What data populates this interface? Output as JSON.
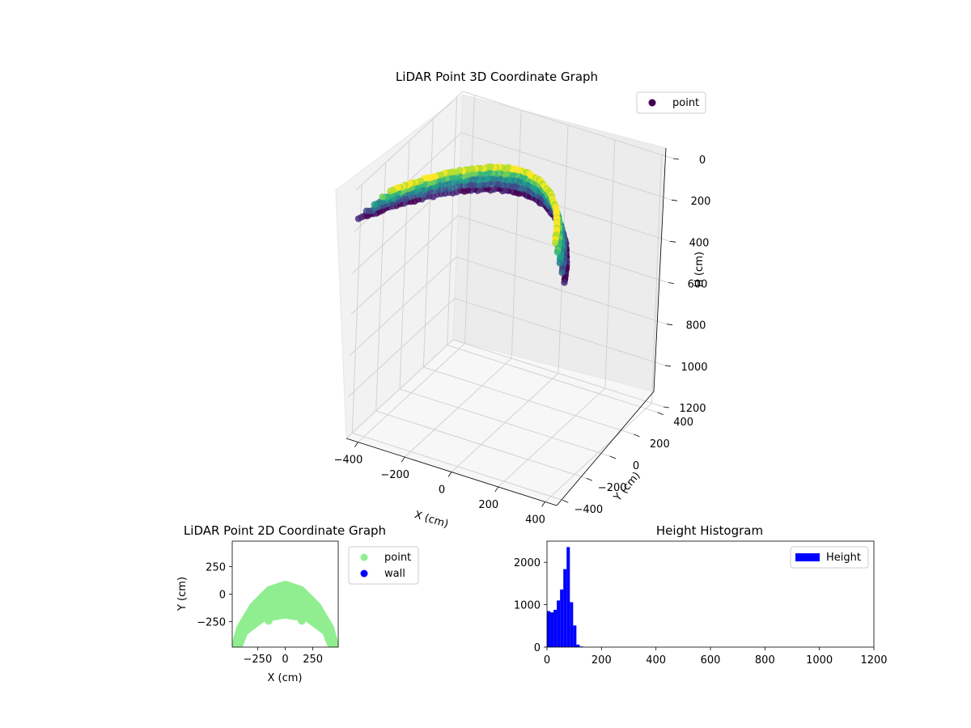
{
  "chart_data": [
    {
      "type": "scatter",
      "projection": "3d",
      "title": "LiDAR Point 3D Coordinate Graph",
      "xlabel": "X (cm)",
      "ylabel": "Y (cm)",
      "zlabel": "H (cm)",
      "xlim": [
        -450,
        450
      ],
      "ylim": [
        -450,
        450
      ],
      "zlim": [
        0,
        1200
      ],
      "z_inverted": true,
      "x_ticks": [
        "−400",
        "−200",
        "0",
        "200",
        "400"
      ],
      "y_ticks": [
        "−400",
        "−200",
        "0",
        "200",
        "400"
      ],
      "z_ticks": [
        "0",
        "200",
        "400",
        "600",
        "800",
        "1000",
        "1200"
      ],
      "grid": true,
      "colormap": "viridis",
      "legend": {
        "position": "top-right",
        "entries": [
          {
            "name": "point",
            "color": "#440154"
          }
        ]
      },
      "series": [
        {
          "name": "point",
          "description_arc": "semicircular ring of points, radius about 300–450 cm, Y from about −450 to 100, heights 0–140 cm",
          "arc_samples": [
            {
              "x": -440,
              "y": -440,
              "h": 60
            },
            {
              "x": -380,
              "y": -300,
              "h": 70
            },
            {
              "x": -300,
              "y": -150,
              "h": 80
            },
            {
              "x": -200,
              "y": -20,
              "h": 90
            },
            {
              "x": -100,
              "y": 60,
              "h": 100
            },
            {
              "x": 0,
              "y": 90,
              "h": 100
            },
            {
              "x": 100,
              "y": 60,
              "h": 100
            },
            {
              "x": 200,
              "y": -20,
              "h": 90
            },
            {
              "x": 300,
              "y": -150,
              "h": 80
            },
            {
              "x": 380,
              "y": -300,
              "h": 70
            },
            {
              "x": 440,
              "y": -440,
              "h": 60
            }
          ]
        }
      ]
    },
    {
      "type": "scatter",
      "title": "LiDAR Point 2D Coordinate Graph",
      "xlabel": "X (cm)",
      "ylabel": "Y (cm)",
      "xlim": [
        -480,
        480
      ],
      "ylim": [
        -480,
        480
      ],
      "x_ticks": [
        "−250",
        "0",
        "250"
      ],
      "y_ticks": [
        "250",
        "0",
        "−250"
      ],
      "legend": {
        "position": "outside-right",
        "entries": [
          {
            "name": "point",
            "color": "#90ee90"
          },
          {
            "name": "wall",
            "color": "#0000ff"
          }
        ]
      },
      "series": [
        {
          "name": "point",
          "color": "#90ee90",
          "outer_arc": [
            {
              "x": -470,
              "y": -480
            },
            {
              "x": -420,
              "y": -300
            },
            {
              "x": -300,
              "y": -100
            },
            {
              "x": -150,
              "y": 50
            },
            {
              "x": 0,
              "y": 100
            },
            {
              "x": 150,
              "y": 50
            },
            {
              "x": 300,
              "y": -100
            },
            {
              "x": 420,
              "y": -300
            },
            {
              "x": 470,
              "y": -480
            }
          ],
          "inner_arc": [
            {
              "x": 410,
              "y": -480
            },
            {
              "x": 360,
              "y": -350
            },
            {
              "x": 200,
              "y": -230
            },
            {
              "x": 0,
              "y": -200
            },
            {
              "x": -200,
              "y": -230
            },
            {
              "x": -360,
              "y": -350
            },
            {
              "x": -410,
              "y": -480
            }
          ],
          "inner_points": [
            {
              "x": -300,
              "y": -280
            },
            {
              "x": -150,
              "y": -240
            },
            {
              "x": 150,
              "y": -240
            },
            {
              "x": 300,
              "y": -280
            },
            {
              "x": 390,
              "y": -400
            }
          ]
        },
        {
          "name": "wall",
          "color": "#0000ff",
          "points": []
        }
      ]
    },
    {
      "type": "bar",
      "subtype": "histogram",
      "title": "Height Histogram",
      "xlabel": "",
      "ylabel": "",
      "xlim": [
        0,
        1200
      ],
      "ylim": [
        0,
        2500
      ],
      "x_ticks": [
        "0",
        "200",
        "400",
        "600",
        "800",
        "1000",
        "1200"
      ],
      "y_ticks": [
        "0",
        "1000",
        "2000"
      ],
      "legend": {
        "position": "top-right",
        "entries": [
          {
            "name": "Height",
            "color": "#0000ff"
          }
        ]
      },
      "bin_width": 12,
      "bins": [
        {
          "x0": 0,
          "value": 850
        },
        {
          "x0": 12,
          "value": 820
        },
        {
          "x0": 24,
          "value": 880
        },
        {
          "x0": 36,
          "value": 1100
        },
        {
          "x0": 48,
          "value": 1360
        },
        {
          "x0": 60,
          "value": 1840
        },
        {
          "x0": 72,
          "value": 2360
        },
        {
          "x0": 84,
          "value": 1060
        },
        {
          "x0": 96,
          "value": 510
        },
        {
          "x0": 108,
          "value": 60
        },
        {
          "x0": 120,
          "value": 15
        }
      ]
    }
  ]
}
